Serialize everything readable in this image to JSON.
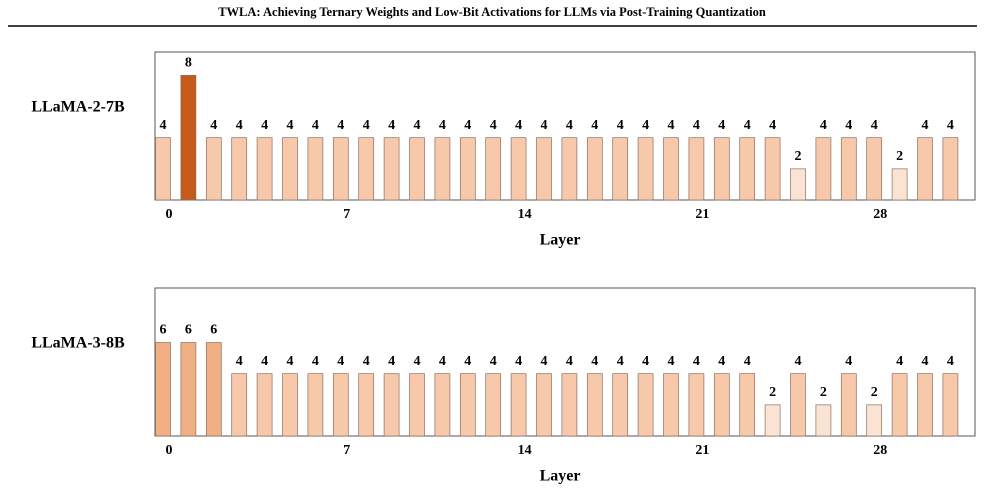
{
  "header": {
    "title": "TWLA: Achieving Ternary Weights and Low-Bit Activations for LLMs via Post-Training Quantization"
  },
  "chart_data": [
    {
      "type": "bar",
      "title": "LLaMA-2-7B",
      "xlabel": "Layer",
      "categories": [
        "0",
        null,
        null,
        null,
        null,
        null,
        null,
        "7",
        null,
        null,
        null,
        null,
        null,
        null,
        "14",
        null,
        null,
        null,
        null,
        null,
        null,
        "21",
        null,
        null,
        null,
        null,
        null,
        null,
        "28",
        null,
        null,
        null
      ],
      "values": [
        4,
        8,
        4,
        4,
        4,
        4,
        4,
        4,
        4,
        4,
        4,
        4,
        4,
        4,
        4,
        4,
        4,
        4,
        4,
        4,
        4,
        4,
        4,
        4,
        4,
        2,
        4,
        4,
        4,
        2,
        4,
        4
      ],
      "colors": [
        "#f7c9aa",
        "#c55a1a",
        "#f7c9aa",
        "#f7c9aa",
        "#f7c9aa",
        "#f7c9aa",
        "#f7c9aa",
        "#f7c9aa",
        "#f7c9aa",
        "#f7c9aa",
        "#f7c9aa",
        "#f7c9aa",
        "#f7c9aa",
        "#f7c9aa",
        "#f7c9aa",
        "#f7c9aa",
        "#f7c9aa",
        "#f7c9aa",
        "#f7c9aa",
        "#f7c9aa",
        "#f7c9aa",
        "#f7c9aa",
        "#f7c9aa",
        "#f7c9aa",
        "#f7c9aa",
        "#fbe3d3",
        "#f7c9aa",
        "#f7c9aa",
        "#f7c9aa",
        "#fbe3d3",
        "#f7c9aa",
        "#f7c9aa"
      ],
      "ylim": [
        0,
        9.5
      ]
    },
    {
      "type": "bar",
      "title": "LLaMA-3-8B",
      "xlabel": "Layer",
      "categories": [
        "0",
        null,
        null,
        null,
        null,
        null,
        null,
        "7",
        null,
        null,
        null,
        null,
        null,
        null,
        "14",
        null,
        null,
        null,
        null,
        null,
        null,
        "21",
        null,
        null,
        null,
        null,
        null,
        null,
        "28",
        null,
        null,
        null
      ],
      "values": [
        6,
        6,
        6,
        4,
        4,
        4,
        4,
        4,
        4,
        4,
        4,
        4,
        4,
        4,
        4,
        4,
        4,
        4,
        4,
        4,
        4,
        4,
        4,
        4,
        2,
        4,
        2,
        4,
        2,
        4,
        4,
        4
      ],
      "colors": [
        "#f0b083",
        "#f0b083",
        "#f0b083",
        "#f7c9aa",
        "#f7c9aa",
        "#f7c9aa",
        "#f7c9aa",
        "#f7c9aa",
        "#f7c9aa",
        "#f7c9aa",
        "#f7c9aa",
        "#f7c9aa",
        "#f7c9aa",
        "#f7c9aa",
        "#f7c9aa",
        "#f7c9aa",
        "#f7c9aa",
        "#f7c9aa",
        "#f7c9aa",
        "#f7c9aa",
        "#f7c9aa",
        "#f7c9aa",
        "#f7c9aa",
        "#f7c9aa",
        "#fbe3d3",
        "#f7c9aa",
        "#fbe3d3",
        "#f7c9aa",
        "#fbe3d3",
        "#f7c9aa",
        "#f7c9aa",
        "#f7c9aa"
      ],
      "ylim": [
        0,
        9.5
      ]
    }
  ]
}
